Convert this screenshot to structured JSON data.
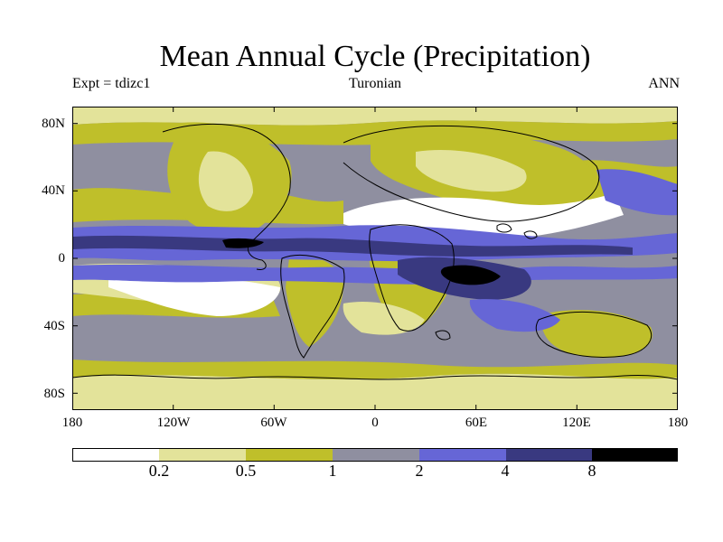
{
  "title": "Mean Annual Cycle (Precipitation)",
  "subtitle_left": "Expt = tdizc1",
  "subtitle_center": "Turonian",
  "subtitle_right": "ANN",
  "lat_labels": [
    "80N",
    "40N",
    "0",
    "40S",
    "80S"
  ],
  "lon_labels": [
    "180",
    "120W",
    "60W",
    "0",
    "60E",
    "120E",
    "180"
  ],
  "colorbar": {
    "ticks": [
      "0.2",
      "0.5",
      "1",
      "2",
      "4",
      "8"
    ],
    "colors": [
      "#ffffff",
      "#e3e39a",
      "#bfbf2a",
      "#8f8fa0",
      "#6666d6",
      "#393980",
      "#000000"
    ]
  },
  "colors": {
    "ocean_default": "#8f8fa0",
    "coastline": "#000000"
  }
}
